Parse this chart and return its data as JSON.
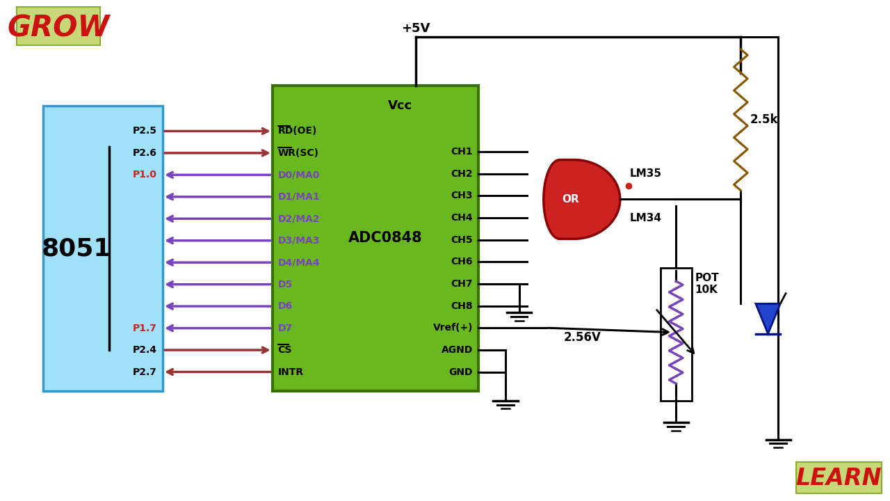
{
  "bg_color": "#ffffff",
  "grow_bg": "#c8d878",
  "grow_text": "GROW",
  "grow_text_color": "#cc1111",
  "learn_bg": "#c8d878",
  "learn_text": "LEARN",
  "learn_text_color": "#cc1111",
  "adc_bg": "#6ab820",
  "adc_border": "#4a8800",
  "chip_label": "ADC0848",
  "chip_vcc": "Vcc",
  "micro_bg": "#a0e0f8",
  "micro_border": "#4488aa",
  "micro_label": "8051",
  "power_color": "#000000",
  "vcc_label": "+5V",
  "lm35_label": "LM35",
  "lm34_label": "LM34",
  "or_label": "OR",
  "pot_label": "POT",
  "pot_k_label": "10K",
  "resistor_label": "2.5k",
  "voltage_label": "2.56V",
  "red_arrow": "#993333",
  "purple_arrow": "#7744bb",
  "or_color": "#cc2222",
  "diode_color": "#2244cc",
  "resistor_color": "#885500",
  "pot_color": "#7744bb"
}
